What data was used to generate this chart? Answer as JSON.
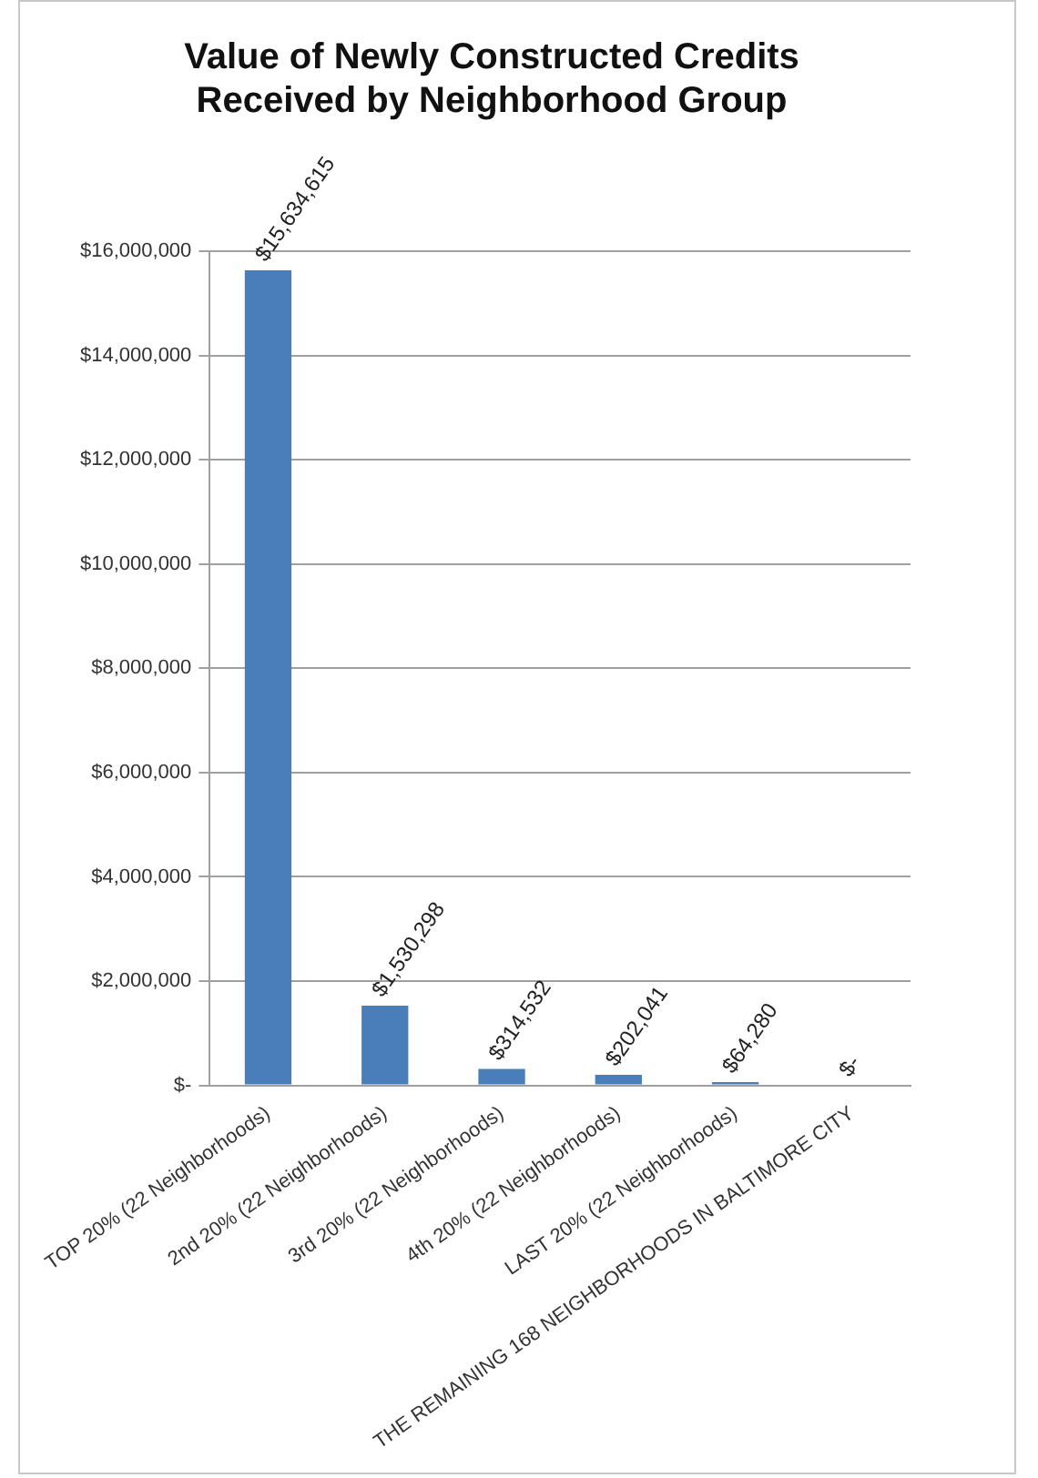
{
  "chart_data": {
    "type": "bar",
    "title": "Value of Newly Constructed Credits\nReceived by Neighborhood Group",
    "categories": [
      "TOP 20% (22 Neighborhoods)",
      "2nd 20% (22 Neighborhoods)",
      "3rd 20% (22 Neighborhoods)",
      "4th 20% (22 Neighborhoods)",
      "LAST 20% (22 Neighborhoods)",
      "THE REMAINING 168 NEIGHBORHOODS IN BALTIMORE CITY"
    ],
    "values": [
      15634615,
      1530298,
      314532,
      202041,
      64280,
      0
    ],
    "value_labels": [
      "$15,634,615",
      "$1,530,298",
      "$314,532",
      "$202,041",
      "$64,280",
      "$-"
    ],
    "color": "#4a7ebb",
    "ylim": [
      0,
      16000000
    ],
    "yticks": [
      {
        "value": 0,
        "label": "$-"
      },
      {
        "value": 2000000,
        "label": "$2,000,000"
      },
      {
        "value": 4000000,
        "label": "$4,000,000"
      },
      {
        "value": 6000000,
        "label": "$6,000,000"
      },
      {
        "value": 8000000,
        "label": "$8,000,000"
      },
      {
        "value": 10000000,
        "label": "$10,000,000"
      },
      {
        "value": 12000000,
        "label": "$12,000,000"
      },
      {
        "value": 14000000,
        "label": "$14,000,000"
      },
      {
        "value": 16000000,
        "label": "$16,000,000"
      }
    ],
    "grid": "y",
    "legend": false
  }
}
